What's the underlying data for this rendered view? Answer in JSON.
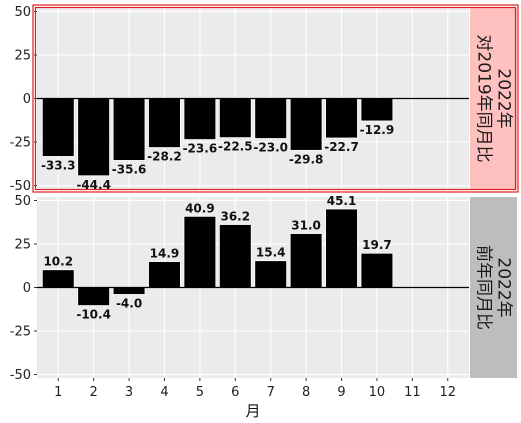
{
  "chart_data": {
    "type": "bar",
    "xlabel": "月",
    "x_ticks": [
      "1",
      "2",
      "3",
      "4",
      "5",
      "6",
      "7",
      "8",
      "9",
      "10",
      "11",
      "12"
    ],
    "ylim": [
      -52,
      52
    ],
    "y_ticks": [
      -50,
      -25,
      0,
      25,
      50
    ],
    "grid": true,
    "panels": [
      {
        "strip_label": [
          "2022年",
          "对2019年同月比"
        ],
        "strip_color": "#ffc0c0",
        "highlight_border": "#e02020",
        "x": [
          1,
          2,
          3,
          4,
          5,
          6,
          7,
          8,
          9,
          10
        ],
        "values": [
          -33.3,
          -44.4,
          -35.6,
          -28.2,
          -23.6,
          -22.5,
          -23.0,
          -29.8,
          -22.7,
          -12.9
        ],
        "labels": [
          "-33.3",
          "-44.4",
          "-35.6",
          "-28.2",
          "-23.6",
          "-22.5",
          "-23.0",
          "-29.8",
          "-22.7",
          "-12.9"
        ]
      },
      {
        "strip_label": [
          "2022年",
          "前年同月比"
        ],
        "strip_color": "#bdbdbd",
        "highlight_border": "",
        "x": [
          1,
          2,
          3,
          4,
          5,
          6,
          7,
          8,
          9,
          10
        ],
        "values": [
          10.2,
          -10.4,
          -4.0,
          14.9,
          40.9,
          36.2,
          15.4,
          31.0,
          45.1,
          19.7
        ],
        "labels": [
          "10.2",
          "-10.4",
          "-4.0",
          "14.9",
          "40.9",
          "36.2",
          "15.4",
          "31.0",
          "45.1",
          "19.7"
        ]
      }
    ],
    "bar_color": "#000000",
    "panel_background": "#ebebeb"
  }
}
